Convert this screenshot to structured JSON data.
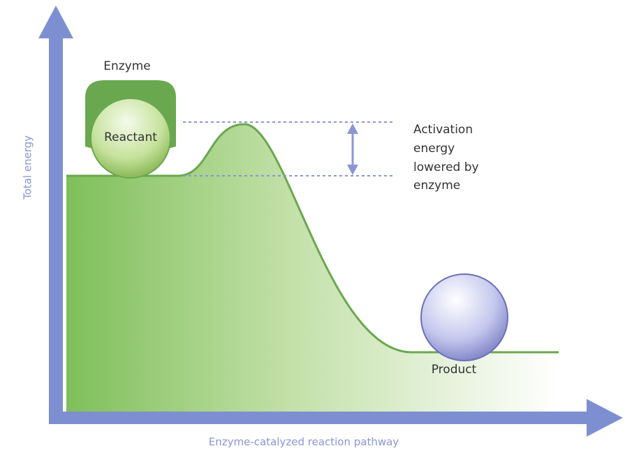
{
  "diagram": {
    "y_axis_label": "Total energy",
    "x_axis_label": "Enzyme-catalyzed reaction pathway",
    "enzyme_label": "Enzyme",
    "reactant_label": "Reactant",
    "product_label": "Product",
    "annotation_lines": [
      "Activation",
      "energy",
      "lowered by",
      "enzyme"
    ]
  }
}
